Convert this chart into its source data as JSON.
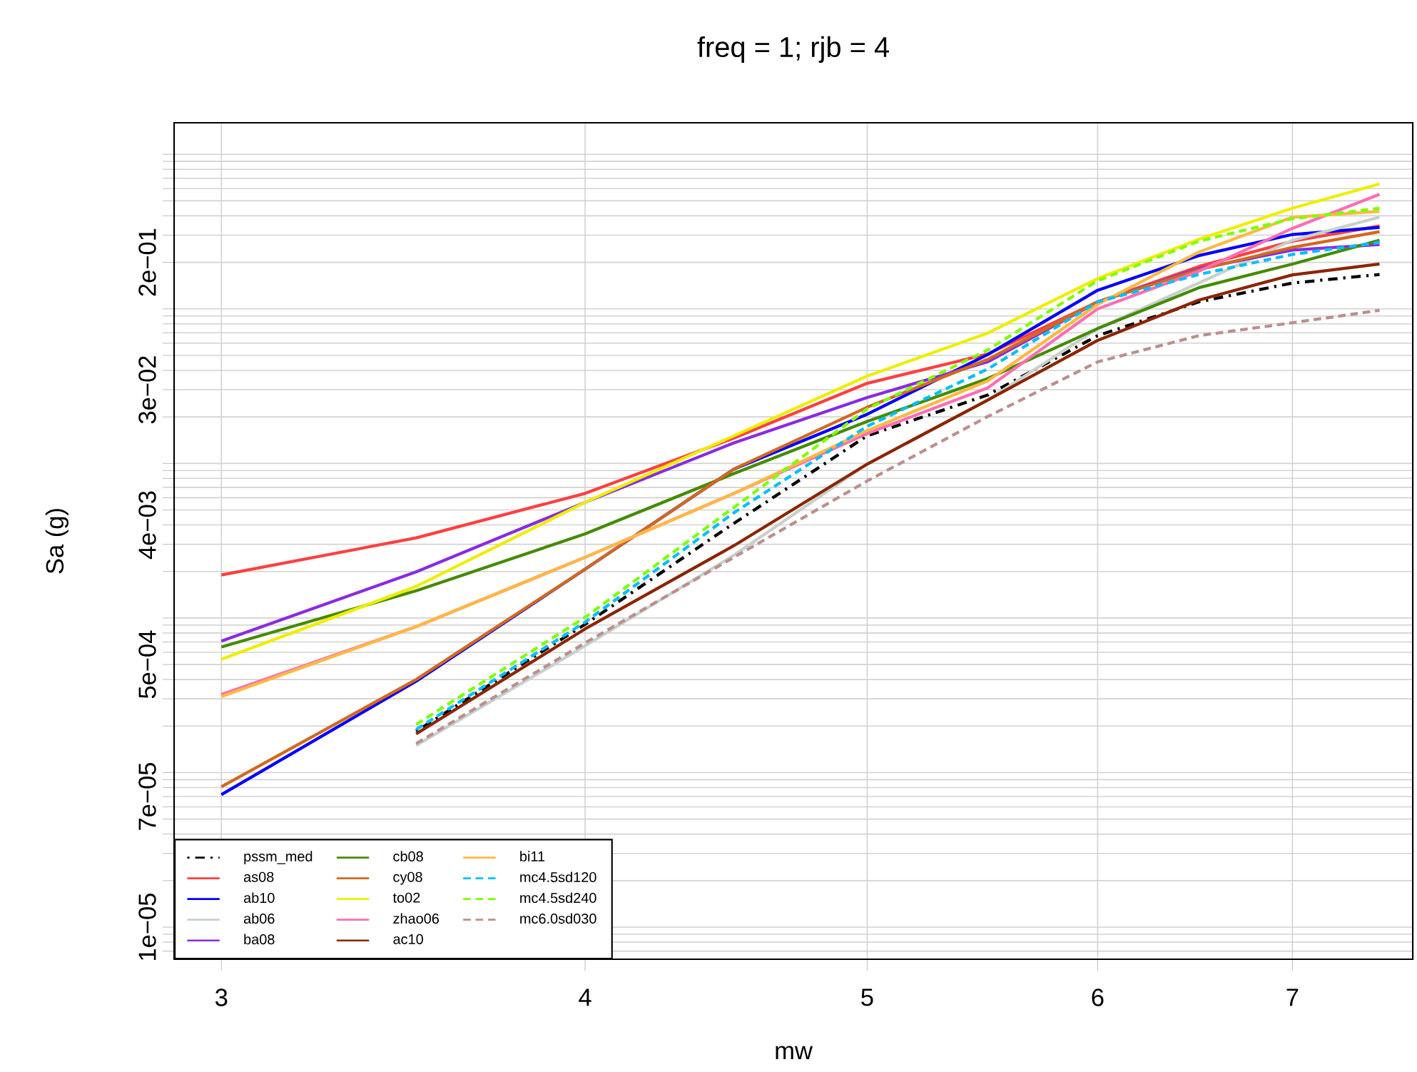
{
  "chart_data": {
    "type": "line",
    "title": "freq = 1;     rjb = 4",
    "xlabel": "mw",
    "ylabel": "Sa (g)",
    "log": "xy",
    "grid": true,
    "legend": "bottom left",
    "x": [
      3,
      3.5,
      4,
      4.5,
      5,
      5.5,
      6,
      6.5,
      7,
      7.5
    ],
    "xlim": [
      2.89,
      7.7
    ],
    "xticks": [
      3,
      4,
      5,
      6,
      7
    ],
    "ylim": [
      6.2e-06,
      1.6
    ],
    "yticks": [
      {
        "value": 7e-06,
        "label": null
      },
      {
        "value": 8e-06,
        "label": null
      },
      {
        "value": 9e-06,
        "label": null
      },
      {
        "value": 1e-05,
        "label": "1e−05"
      },
      {
        "value": 2e-05,
        "label": null
      },
      {
        "value": 3e-05,
        "label": null
      },
      {
        "value": 4e-05,
        "label": null
      },
      {
        "value": 5e-05,
        "label": null
      },
      {
        "value": 6e-05,
        "label": null
      },
      {
        "value": 7e-05,
        "label": "7e−05"
      },
      {
        "value": 8e-05,
        "label": null
      },
      {
        "value": 9e-05,
        "label": null
      },
      {
        "value": 0.0001,
        "label": null
      },
      {
        "value": 0.0002,
        "label": null
      },
      {
        "value": 0.0003,
        "label": null
      },
      {
        "value": 0.0004,
        "label": null
      },
      {
        "value": 0.0005,
        "label": "5e−04"
      },
      {
        "value": 0.0006,
        "label": null
      },
      {
        "value": 0.0007,
        "label": null
      },
      {
        "value": 0.0008,
        "label": null
      },
      {
        "value": 0.0009,
        "label": null
      },
      {
        "value": 0.001,
        "label": null
      },
      {
        "value": 0.002,
        "label": null
      },
      {
        "value": 0.003,
        "label": null
      },
      {
        "value": 0.004,
        "label": "4e−03"
      },
      {
        "value": 0.005,
        "label": null
      },
      {
        "value": 0.006,
        "label": null
      },
      {
        "value": 0.007,
        "label": null
      },
      {
        "value": 0.008,
        "label": null
      },
      {
        "value": 0.009,
        "label": null
      },
      {
        "value": 0.01,
        "label": null
      },
      {
        "value": 0.02,
        "label": null
      },
      {
        "value": 0.03,
        "label": "3e−02"
      },
      {
        "value": 0.04,
        "label": null
      },
      {
        "value": 0.05,
        "label": null
      },
      {
        "value": 0.06,
        "label": null
      },
      {
        "value": 0.07,
        "label": null
      },
      {
        "value": 0.08,
        "label": null
      },
      {
        "value": 0.09,
        "label": null
      },
      {
        "value": 0.1,
        "label": null
      },
      {
        "value": 0.2,
        "label": "2e−01"
      },
      {
        "value": 0.3,
        "label": null
      },
      {
        "value": 0.4,
        "label": null
      },
      {
        "value": 0.5,
        "label": null
      },
      {
        "value": 0.6,
        "label": null
      },
      {
        "value": 0.7,
        "label": null
      },
      {
        "value": 0.8,
        "label": null
      },
      {
        "value": 0.9,
        "label": null
      },
      {
        "value": 1,
        "label": null
      }
    ],
    "series": [
      {
        "name": "pssm_med",
        "color": "#000000",
        "line_style": "dashdot",
        "values": [
          null,
          0.000185,
          0.00091,
          0.0041,
          0.0151,
          0.0277,
          0.0671,
          0.111,
          0.147,
          0.167
        ]
      },
      {
        "name": "as08",
        "color": "#ff4040",
        "values": [
          0.0019,
          0.0033,
          0.0064,
          0.0146,
          0.033,
          0.051,
          0.111,
          0.188,
          0.274,
          0.344
        ]
      },
      {
        "name": "ab10",
        "color": "#0000ff",
        "values": [
          7.2e-05,
          0.00039,
          0.00207,
          0.0092,
          0.0208,
          0.0506,
          0.132,
          0.221,
          0.303,
          0.337
        ]
      },
      {
        "name": "ab06",
        "color": "#c8d0cc",
        "values": [
          null,
          0.00015,
          0.00066,
          0.00255,
          0.0099,
          0.0257,
          0.0746,
          0.147,
          0.278,
          0.392
        ]
      },
      {
        "name": "ba08",
        "color": "#8a2be2",
        "values": [
          0.00071,
          0.00199,
          0.0056,
          0.0136,
          0.0267,
          0.0454,
          0.111,
          0.182,
          0.24,
          0.261
        ]
      },
      {
        "name": "cb08",
        "color": "#458b00",
        "values": [
          0.00065,
          0.0015,
          0.0035,
          0.0086,
          0.0187,
          0.0354,
          0.0746,
          0.137,
          0.195,
          0.278
        ]
      },
      {
        "name": "cy08",
        "color": "#d2691e",
        "values": [
          8.1e-05,
          0.0004,
          0.00207,
          0.0092,
          0.0231,
          0.0471,
          0.111,
          0.179,
          0.25,
          0.316
        ]
      },
      {
        "name": "to02",
        "color": "#eeee00",
        "values": [
          0.00054,
          0.0016,
          0.0056,
          0.0151,
          0.0367,
          0.0697,
          0.157,
          0.282,
          0.448,
          0.643
        ]
      },
      {
        "name": "zhao06",
        "color": "#ff6eb4",
        "values": [
          0.00032,
          0.00088,
          0.00247,
          0.0064,
          0.0156,
          0.0308,
          0.1,
          0.175,
          0.332,
          0.551
        ]
      },
      {
        "name": "ac10",
        "color": "#8b2500",
        "values": [
          null,
          0.000178,
          0.00085,
          0.00294,
          0.0099,
          0.0257,
          0.0625,
          0.114,
          0.166,
          0.195
        ]
      },
      {
        "name": "bi11",
        "color": "#ffb940",
        "values": [
          0.00031,
          0.00088,
          0.00247,
          0.0064,
          0.0163,
          0.0342,
          0.107,
          0.233,
          0.392,
          0.427
        ]
      },
      {
        "name": "mc4.5sd120",
        "color": "#00bfff",
        "line_style": "dashed",
        "values": [
          null,
          0.00019,
          0.00094,
          0.0048,
          0.0174,
          0.0408,
          0.111,
          0.167,
          0.225,
          0.269
        ]
      },
      {
        "name": "mc4.5sd240",
        "color": "#7fff00",
        "line_style": "dashed",
        "values": [
          null,
          0.000205,
          0.00101,
          0.0052,
          0.0225,
          0.0542,
          0.152,
          0.274,
          0.383,
          0.448
        ]
      },
      {
        "name": "mc6.0sd030",
        "color": "#bc8f8f",
        "line_style": "dashed",
        "values": [
          null,
          0.000154,
          0.00069,
          0.00247,
          0.0077,
          0.0201,
          0.0454,
          0.0671,
          0.0813,
          0.0979
        ]
      }
    ]
  }
}
